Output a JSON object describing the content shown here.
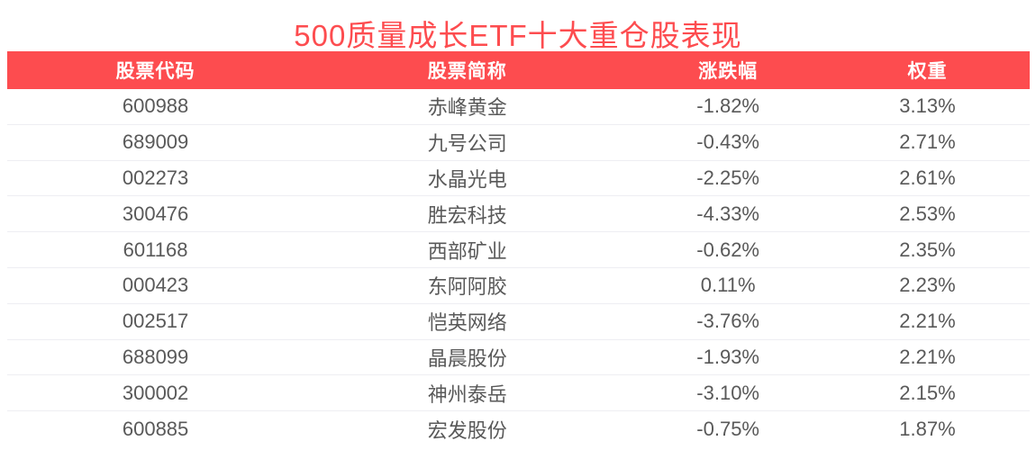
{
  "title": "500质量成长ETF十大重仓股表现",
  "colors": {
    "accent_red": "#FD4C4F",
    "header_text": "#FFFFFF",
    "body_text": "#595959",
    "divider": "#EEEEF2"
  },
  "table": {
    "headers": [
      "股票代码",
      "股票简称",
      "涨跌幅",
      "权重"
    ],
    "rows": [
      {
        "code": "600988",
        "name": "赤峰黄金",
        "change": "-1.82%",
        "weight": "3.13%"
      },
      {
        "code": "689009",
        "name": "九号公司",
        "change": "-0.43%",
        "weight": "2.71%"
      },
      {
        "code": "002273",
        "name": "水晶光电",
        "change": "-2.25%",
        "weight": "2.61%"
      },
      {
        "code": "300476",
        "name": "胜宏科技",
        "change": "-4.33%",
        "weight": "2.53%"
      },
      {
        "code": "601168",
        "name": "西部矿业",
        "change": "-0.62%",
        "weight": "2.35%"
      },
      {
        "code": "000423",
        "name": "东阿阿胶",
        "change": "0.11%",
        "weight": "2.23%"
      },
      {
        "code": "002517",
        "name": "恺英网络",
        "change": "-3.76%",
        "weight": "2.21%"
      },
      {
        "code": "688099",
        "name": "晶晨股份",
        "change": "-1.93%",
        "weight": "2.21%"
      },
      {
        "code": "300002",
        "name": "神州泰岳",
        "change": "-3.10%",
        "weight": "2.15%"
      },
      {
        "code": "600885",
        "name": "宏发股份",
        "change": "-0.75%",
        "weight": "1.87%"
      }
    ]
  },
  "chart_data": {
    "type": "table",
    "title": "500质量成长ETF十大重仓股表现",
    "columns": [
      "股票代码",
      "股票简称",
      "涨跌幅",
      "权重"
    ],
    "rows": [
      [
        "600988",
        "赤峰黄金",
        "-1.82%",
        "3.13%"
      ],
      [
        "689009",
        "九号公司",
        "-0.43%",
        "2.71%"
      ],
      [
        "002273",
        "水晶光电",
        "-2.25%",
        "2.61%"
      ],
      [
        "300476",
        "胜宏科技",
        "-4.33%",
        "2.53%"
      ],
      [
        "601168",
        "西部矿业",
        "-0.62%",
        "2.35%"
      ],
      [
        "000423",
        "东阿阿胶",
        "0.11%",
        "2.23%"
      ],
      [
        "002517",
        "恺英网络",
        "-3.76%",
        "2.21%"
      ],
      [
        "688099",
        "晶晨股份",
        "-1.93%",
        "2.21%"
      ],
      [
        "300002",
        "神州泰岳",
        "-3.10%",
        "2.15%"
      ],
      [
        "600885",
        "宏发股份",
        "-0.75%",
        "1.87%"
      ]
    ],
    "change_values": [
      -1.82,
      -0.43,
      -2.25,
      -4.33,
      -0.62,
      0.11,
      -3.76,
      -1.93,
      -3.1,
      -0.75
    ],
    "weight_values": [
      3.13,
      2.71,
      2.61,
      2.53,
      2.35,
      2.23,
      2.21,
      2.21,
      2.15,
      1.87
    ],
    "layout": {
      "header_background": "#FD4C4F",
      "grid": "horizontal-dividers",
      "alignment": "center"
    }
  }
}
